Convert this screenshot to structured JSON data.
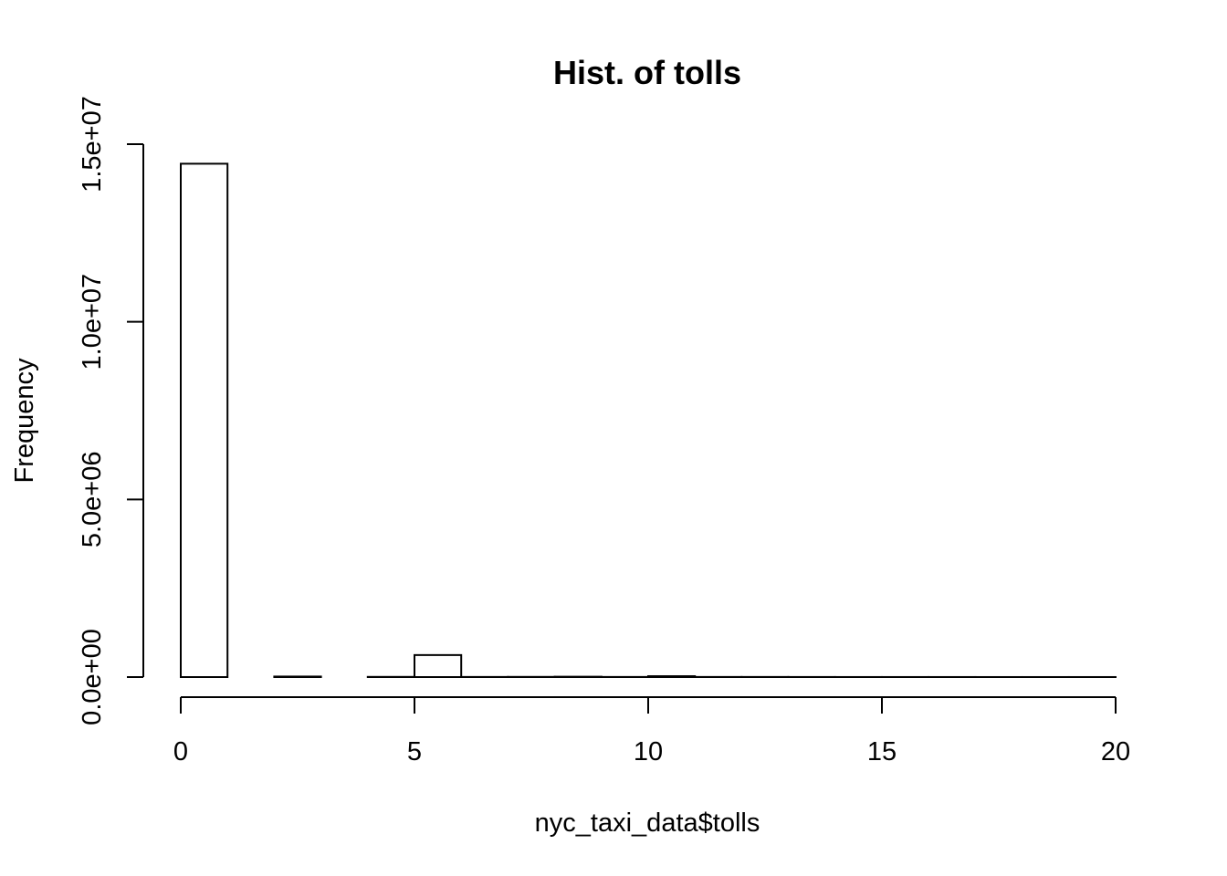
{
  "chart_data": {
    "type": "bar",
    "title": "Hist. of tolls",
    "xlabel": "nyc_taxi_data$tolls",
    "ylabel": "Frequency",
    "xlim": [
      0,
      20
    ],
    "ylim": [
      0,
      15000000
    ],
    "grid": false,
    "legend": "none",
    "bins": [
      {
        "start": 0,
        "end": 1,
        "count": 14450000
      },
      {
        "start": 1,
        "end": 2,
        "count": 0
      },
      {
        "start": 2,
        "end": 3,
        "count": 15000
      },
      {
        "start": 3,
        "end": 4,
        "count": 0
      },
      {
        "start": 4,
        "end": 5,
        "count": 5000
      },
      {
        "start": 5,
        "end": 6,
        "count": 620000
      },
      {
        "start": 6,
        "end": 7,
        "count": 3000
      },
      {
        "start": 7,
        "end": 8,
        "count": 5000
      },
      {
        "start": 8,
        "end": 9,
        "count": 10000
      },
      {
        "start": 9,
        "end": 10,
        "count": 3000
      },
      {
        "start": 10,
        "end": 11,
        "count": 25000
      },
      {
        "start": 11,
        "end": 12,
        "count": 3000
      },
      {
        "start": 12,
        "end": 13,
        "count": 3000
      },
      {
        "start": 13,
        "end": 14,
        "count": 2000
      },
      {
        "start": 14,
        "end": 15,
        "count": 1000
      },
      {
        "start": 15,
        "end": 16,
        "count": 1000
      },
      {
        "start": 16,
        "end": 17,
        "count": 1000
      },
      {
        "start": 17,
        "end": 18,
        "count": 500
      },
      {
        "start": 18,
        "end": 19,
        "count": 500
      },
      {
        "start": 19,
        "end": 20,
        "count": 500
      }
    ],
    "x_ticks": [
      0,
      5,
      10,
      15,
      20
    ],
    "x_tick_labels": [
      "0",
      "5",
      "10",
      "15",
      "20"
    ],
    "y_ticks": [
      0,
      5000000,
      10000000,
      15000000
    ],
    "y_tick_labels": [
      "0.0e+00",
      "5.0e+06",
      "1.0e+07",
      "1.5e+07"
    ]
  }
}
